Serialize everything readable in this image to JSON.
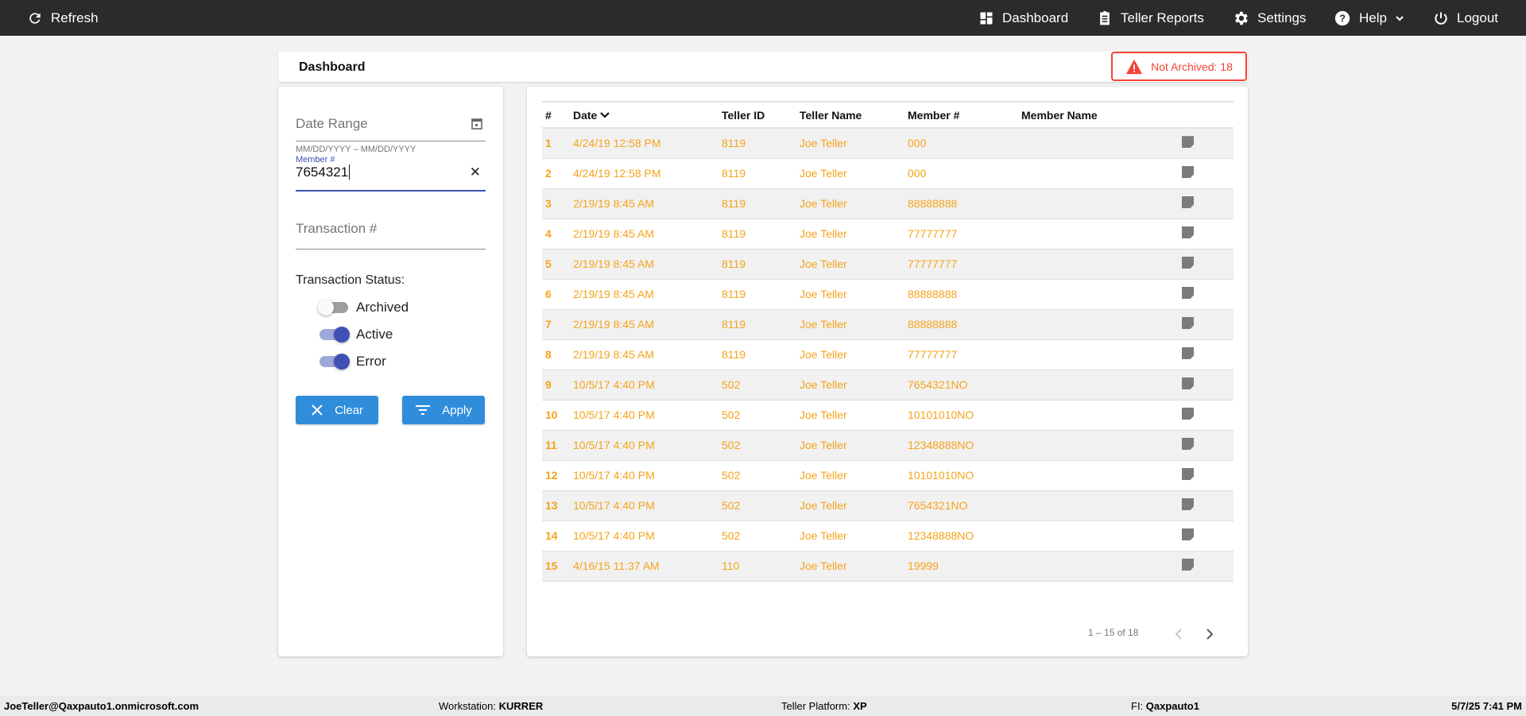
{
  "topbar": {
    "refresh": "Refresh",
    "dashboard": "Dashboard",
    "teller_reports": "Teller Reports",
    "settings": "Settings",
    "help": "Help",
    "logout": "Logout"
  },
  "header": {
    "title": "Dashboard",
    "alert": "Not Archived: 18",
    "alert_color": "#f44336"
  },
  "filters": {
    "date_range_placeholder": "Date Range",
    "date_hint": "MM/DD/YYYY – MM/DD/YYYY",
    "member_label": "Member #",
    "member_value": "7654321",
    "transaction_placeholder": "Transaction #",
    "status_label": "Transaction Status:",
    "toggles": [
      {
        "label": "Archived",
        "on": false
      },
      {
        "label": "Active",
        "on": true
      },
      {
        "label": "Error",
        "on": true
      }
    ],
    "clear": "Clear",
    "apply": "Apply"
  },
  "table": {
    "columns": [
      "#",
      "Date",
      "Teller ID",
      "Teller Name",
      "Member #",
      "Member Name"
    ],
    "rows": [
      [
        "1",
        "4/24/19 12:58 PM",
        "8119",
        "Joe Teller",
        "000",
        ""
      ],
      [
        "2",
        "4/24/19 12:58 PM",
        "8119",
        "Joe Teller",
        "000",
        ""
      ],
      [
        "3",
        "2/19/19 8:45 AM",
        "8119",
        "Joe Teller",
        "88888888",
        ""
      ],
      [
        "4",
        "2/19/19 8:45 AM",
        "8119",
        "Joe Teller",
        "77777777",
        ""
      ],
      [
        "5",
        "2/19/19 8:45 AM",
        "8119",
        "Joe Teller",
        "77777777",
        ""
      ],
      [
        "6",
        "2/19/19 8:45 AM",
        "8119",
        "Joe Teller",
        "88888888",
        ""
      ],
      [
        "7",
        "2/19/19 8:45 AM",
        "8119",
        "Joe Teller",
        "88888888",
        ""
      ],
      [
        "8",
        "2/19/19 8:45 AM",
        "8119",
        "Joe Teller",
        "77777777",
        ""
      ],
      [
        "9",
        "10/5/17 4:40 PM",
        "502",
        "Joe Teller",
        "7654321NO",
        ""
      ],
      [
        "10",
        "10/5/17 4:40 PM",
        "502",
        "Joe Teller",
        "10101010NO",
        ""
      ],
      [
        "11",
        "10/5/17 4:40 PM",
        "502",
        "Joe Teller",
        "12348888NO",
        ""
      ],
      [
        "12",
        "10/5/17 4:40 PM",
        "502",
        "Joe Teller",
        "10101010NO",
        ""
      ],
      [
        "13",
        "10/5/17 4:40 PM",
        "502",
        "Joe Teller",
        "7654321NO",
        ""
      ],
      [
        "14",
        "10/5/17 4:40 PM",
        "502",
        "Joe Teller",
        "12348888NO",
        ""
      ],
      [
        "15",
        "4/16/15 11:37 AM",
        "110",
        "Joe Teller",
        "19999",
        ""
      ]
    ],
    "row_text_color": "#f5a31a",
    "pagination": "1 – 15 of 18"
  },
  "footer": {
    "user": "JoeTeller@Qaxpauto1.onmicrosoft.com",
    "workstation_label": "Workstation:",
    "workstation": "KURRER",
    "platform_label": "Teller Platform:",
    "platform": "XP",
    "fi_label": "FI:",
    "fi": "Qaxpauto1",
    "datetime": "5/7/25 7:41 PM"
  }
}
